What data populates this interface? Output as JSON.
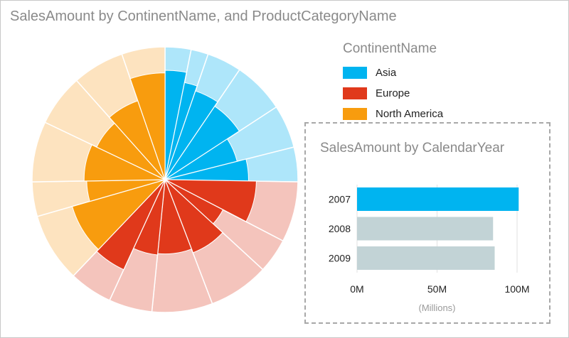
{
  "title": "SalesAmount by ContinentName, and ProductCategoryName",
  "legend": {
    "title": "ContinentName",
    "items": [
      {
        "label": "Asia",
        "color": "#00b4f0"
      },
      {
        "label": "Europe",
        "color": "#e0391b"
      },
      {
        "label": "North America",
        "color": "#f89c0e"
      }
    ]
  },
  "chart_data": [
    {
      "type": "pie",
      "variant": "sunburst",
      "title": "SalesAmount by ContinentName, and ProductCategoryName",
      "legend_title": "ContinentName",
      "legend_position": "top-right",
      "series": [
        {
          "name": "Asia",
          "color": "#00b4f0",
          "color_light": "#aee6fa",
          "categories": [
            {
              "share": 3,
              "inner_value": 0.82
            },
            {
              "share": 2,
              "inner_value": 0.74
            },
            {
              "share": 4,
              "inner_value": 0.7
            },
            {
              "share": 6,
              "inner_value": 0.66
            },
            {
              "share": 5,
              "inner_value": 0.55
            },
            {
              "share": 4,
              "inner_value": 0.62
            }
          ]
        },
        {
          "name": "Europe",
          "color": "#e0391b",
          "color_light": "#f4c4bc",
          "categories": [
            {
              "share": 7,
              "inner_value": 0.68
            },
            {
              "share": 4,
              "inner_value": 0.48
            },
            {
              "share": 7,
              "inner_value": 0.58
            },
            {
              "share": 7,
              "inner_value": 0.55
            },
            {
              "share": 5,
              "inner_value": 0.56
            },
            {
              "share": 5,
              "inner_value": 0.74
            }
          ]
        },
        {
          "name": "North America",
          "color": "#f89c0e",
          "color_light": "#fde3bf",
          "categories": [
            {
              "share": 8,
              "inner_value": 0.72
            },
            {
              "share": 4,
              "inner_value": 0.58
            },
            {
              "share": 7,
              "inner_value": 0.6
            },
            {
              "share": 6,
              "inner_value": 0.56
            },
            {
              "share": 6,
              "inner_value": 0.62
            },
            {
              "share": 5,
              "inner_value": 0.8
            }
          ]
        }
      ]
    },
    {
      "type": "bar",
      "orientation": "horizontal",
      "title": "SalesAmount by CalendarYear",
      "categories": [
        "2007",
        "2008",
        "2009"
      ],
      "values": [
        101,
        85,
        86
      ],
      "highlight": [
        true,
        false,
        false
      ],
      "bar_color": "#00b4f0",
      "bar_color_muted": "#c2d3d6",
      "xlim": [
        0,
        100
      ],
      "ticks": [
        0,
        50,
        100
      ],
      "tick_labels": [
        "0M",
        "50M",
        "100M"
      ],
      "xlabel": "(Millions)",
      "grid": true
    }
  ]
}
